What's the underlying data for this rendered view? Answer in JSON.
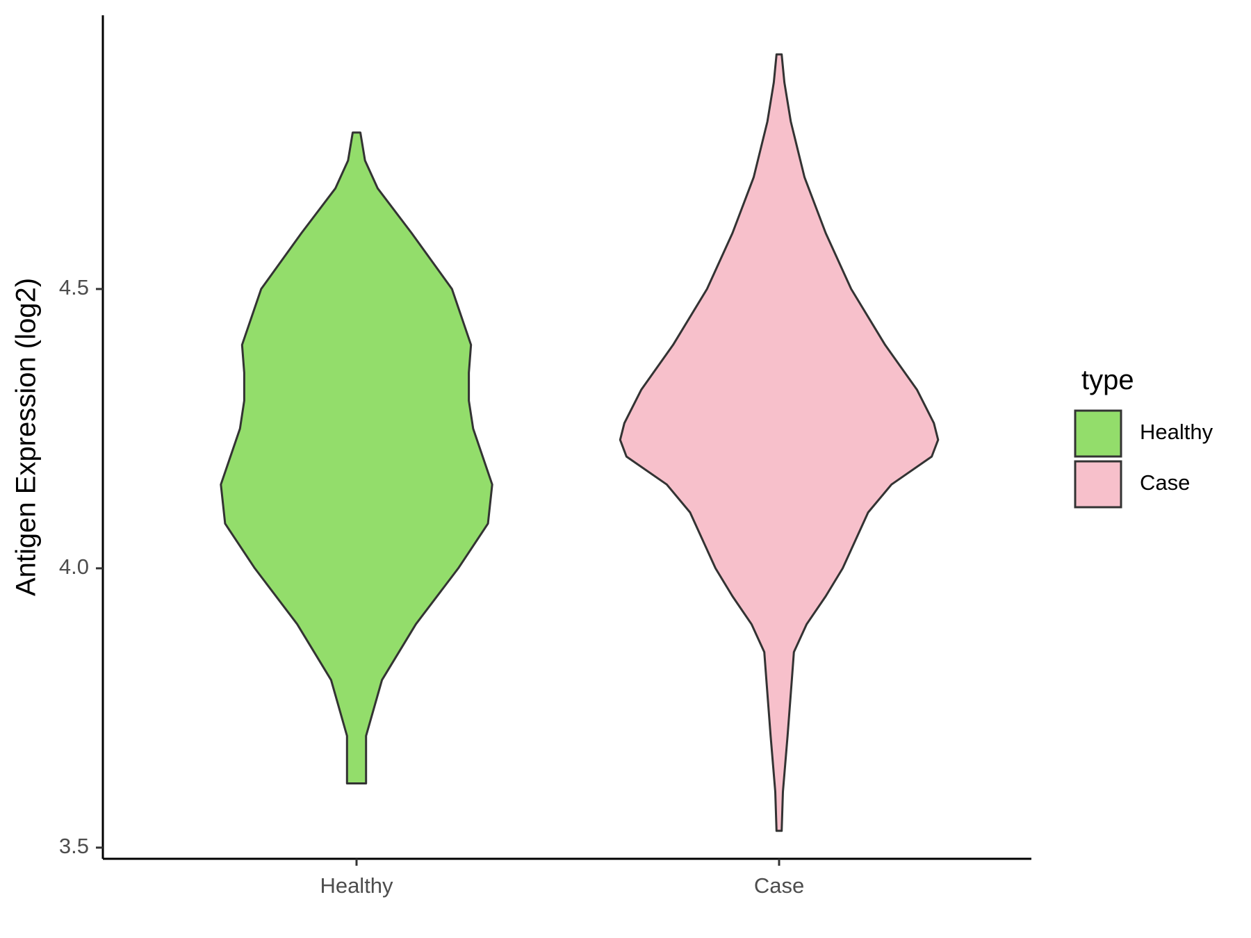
{
  "chart_data": {
    "type": "violin",
    "title": "",
    "xlabel": "",
    "ylabel": "Antigen Expression (log2)",
    "ylim": [
      3.48,
      4.99
    ],
    "yticks": [
      3.5,
      4.0,
      4.5
    ],
    "ytick_labels": [
      "3.5",
      "4.0",
      "4.5"
    ],
    "categories": [
      "Healthy",
      "Case"
    ],
    "grid": false,
    "legend": {
      "title": "type",
      "placement": "right",
      "entries": [
        "Healthy",
        "Case"
      ]
    },
    "series": [
      {
        "name": "Healthy",
        "color": "#93dd6b",
        "min": 3.615,
        "max": 4.78,
        "density_profile": [
          [
            3.615,
            0.045
          ],
          [
            3.7,
            0.045
          ],
          [
            3.8,
            0.12
          ],
          [
            3.9,
            0.28
          ],
          [
            4.0,
            0.48
          ],
          [
            4.08,
            0.62
          ],
          [
            4.15,
            0.64
          ],
          [
            4.25,
            0.55
          ],
          [
            4.3,
            0.53
          ],
          [
            4.35,
            0.53
          ],
          [
            4.4,
            0.54
          ],
          [
            4.5,
            0.45
          ],
          [
            4.6,
            0.26
          ],
          [
            4.68,
            0.1
          ],
          [
            4.73,
            0.04
          ],
          [
            4.78,
            0.018
          ]
        ]
      },
      {
        "name": "Case",
        "color": "#f7c0cb",
        "min": 3.53,
        "max": 4.92,
        "density_profile": [
          [
            3.53,
            0.012
          ],
          [
            3.6,
            0.018
          ],
          [
            3.7,
            0.04
          ],
          [
            3.8,
            0.06
          ],
          [
            3.85,
            0.07
          ],
          [
            3.9,
            0.13
          ],
          [
            3.95,
            0.22
          ],
          [
            4.0,
            0.3
          ],
          [
            4.1,
            0.42
          ],
          [
            4.15,
            0.53
          ],
          [
            4.2,
            0.72
          ],
          [
            4.23,
            0.75
          ],
          [
            4.26,
            0.73
          ],
          [
            4.32,
            0.65
          ],
          [
            4.4,
            0.5
          ],
          [
            4.5,
            0.34
          ],
          [
            4.6,
            0.22
          ],
          [
            4.7,
            0.12
          ],
          [
            4.8,
            0.055
          ],
          [
            4.87,
            0.025
          ],
          [
            4.92,
            0.012
          ]
        ]
      }
    ]
  }
}
